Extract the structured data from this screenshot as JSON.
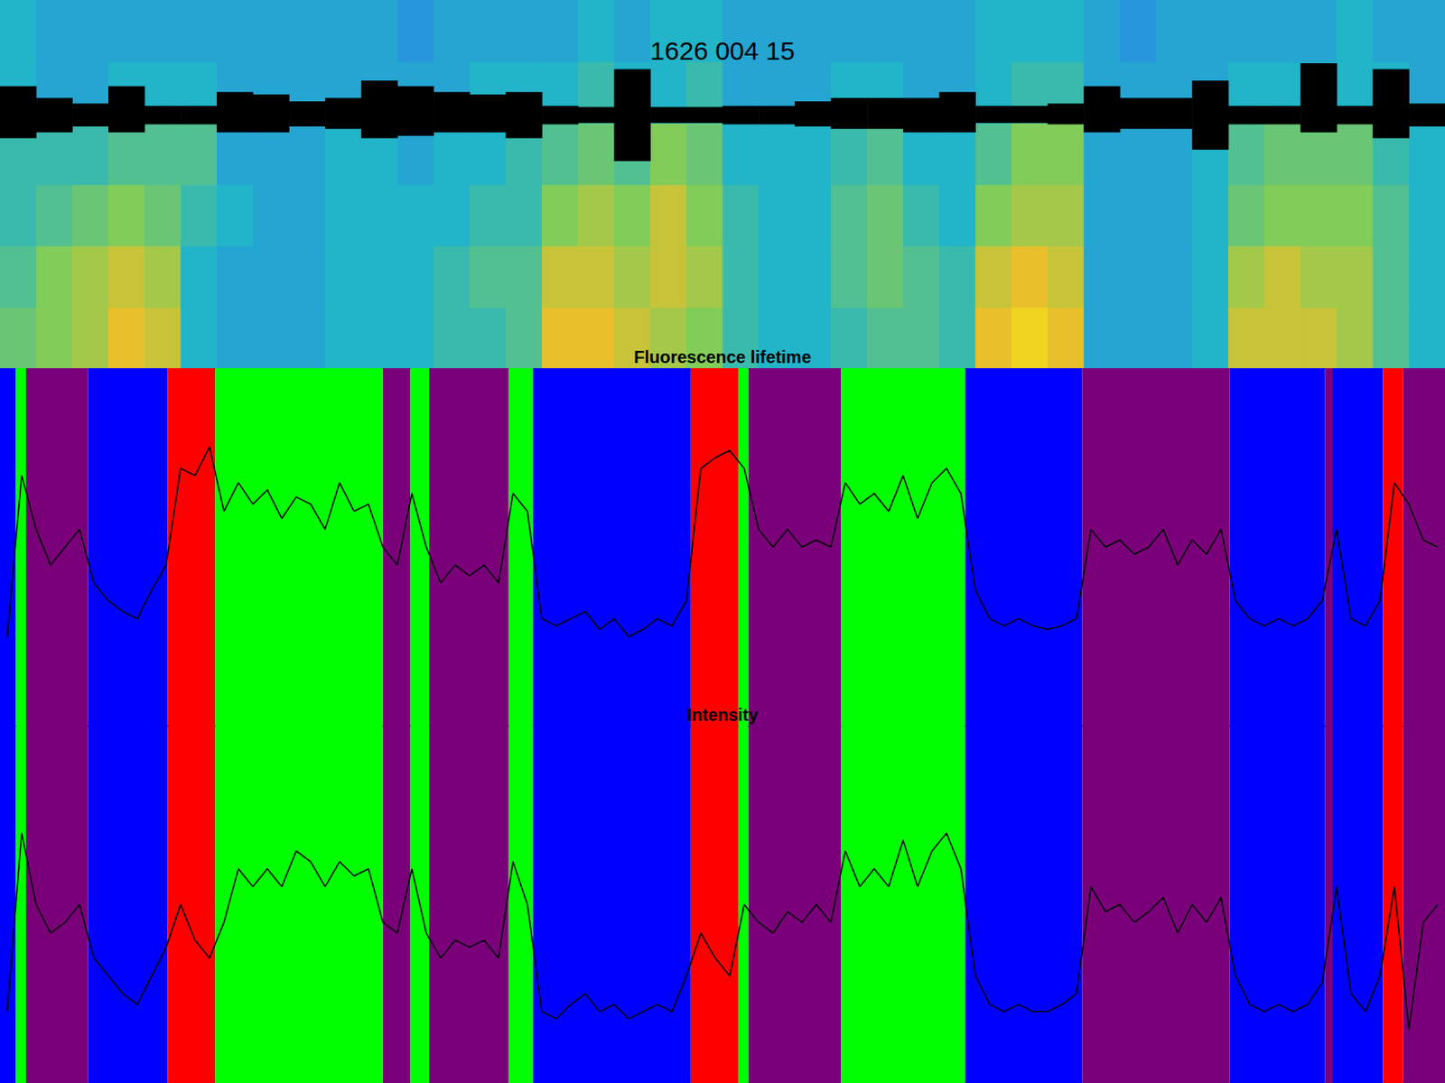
{
  "chart_data": [
    {
      "type": "heatmap",
      "title": "1626 004 15",
      "tick_labels": false,
      "grid": false,
      "xlim": [
        0,
        1000
      ],
      "ylim": [
        0,
        6
      ],
      "color_range": [
        0,
        1
      ],
      "x": [
        12.5,
        37.5,
        62.5,
        87.5,
        112.5,
        137.5,
        162.5,
        187.5,
        212.5,
        237.5,
        262.5,
        287.5,
        312.5,
        337.5,
        362.5,
        387.5,
        412.5,
        437.5,
        462.5,
        487.5,
        512.5,
        537.5,
        562.5,
        587.5,
        612.5,
        637.5,
        662.5,
        687.5,
        712.5,
        737.5,
        762.5,
        787.5,
        812.5,
        837.5,
        862.5,
        887.5,
        912.5,
        937.5,
        962.5,
        987.5
      ],
      "cells": [
        [
          0.65,
          0.7,
          0.75,
          0.85,
          0.8,
          0.5,
          0.45,
          0.45,
          0.45,
          0.5,
          0.5,
          0.5,
          0.55,
          0.55,
          0.6,
          0.85,
          0.85,
          0.8,
          0.75,
          0.7,
          0.55,
          0.5,
          0.5,
          0.55,
          0.6,
          0.6,
          0.55,
          0.85,
          0.9,
          0.85,
          0.45,
          0.45,
          0.45,
          0.5,
          0.8,
          0.8,
          0.8,
          0.75,
          0.6,
          0.5
        ],
        [
          0.6,
          0.7,
          0.75,
          0.8,
          0.75,
          0.5,
          0.45,
          0.45,
          0.45,
          0.5,
          0.5,
          0.5,
          0.55,
          0.6,
          0.6,
          0.8,
          0.8,
          0.75,
          0.8,
          0.75,
          0.55,
          0.5,
          0.5,
          0.6,
          0.65,
          0.6,
          0.55,
          0.8,
          0.85,
          0.8,
          0.45,
          0.45,
          0.45,
          0.5,
          0.75,
          0.8,
          0.75,
          0.75,
          0.6,
          0.5
        ],
        [
          0.55,
          0.6,
          0.65,
          0.7,
          0.65,
          0.55,
          0.5,
          0.45,
          0.45,
          0.5,
          0.5,
          0.5,
          0.5,
          0.55,
          0.55,
          0.7,
          0.75,
          0.7,
          0.8,
          0.7,
          0.55,
          0.5,
          0.5,
          0.6,
          0.65,
          0.55,
          0.5,
          0.7,
          0.75,
          0.75,
          0.45,
          0.45,
          0.45,
          0.5,
          0.65,
          0.7,
          0.7,
          0.7,
          0.6,
          0.5
        ],
        [
          0.55,
          0.55,
          0.55,
          0.6,
          0.6,
          0.6,
          0.45,
          0.45,
          0.45,
          0.5,
          0.5,
          0.45,
          0.5,
          0.5,
          0.55,
          0.6,
          0.65,
          0.6,
          0.7,
          0.65,
          0.5,
          0.5,
          0.5,
          0.55,
          0.6,
          0.5,
          0.5,
          0.6,
          0.7,
          0.7,
          0.45,
          0.45,
          0.45,
          0.5,
          0.6,
          0.65,
          0.65,
          0.65,
          0.55,
          0.5
        ],
        [
          0.5,
          0.45,
          0.45,
          0.5,
          0.5,
          0.5,
          0.45,
          0.45,
          0.45,
          0.45,
          0.45,
          0.45,
          0.45,
          0.5,
          0.5,
          0.5,
          0.55,
          0.5,
          0.5,
          0.55,
          0.45,
          0.45,
          0.45,
          0.5,
          0.5,
          0.45,
          0.45,
          0.5,
          0.55,
          0.55,
          0.45,
          0.45,
          0.45,
          0.45,
          0.5,
          0.5,
          0.5,
          0.5,
          0.5,
          0.45
        ],
        [
          0.5,
          0.45,
          0.45,
          0.45,
          0.45,
          0.45,
          0.45,
          0.45,
          0.45,
          0.45,
          0.45,
          0.4,
          0.45,
          0.45,
          0.45,
          0.45,
          0.5,
          0.45,
          0.5,
          0.5,
          0.45,
          0.45,
          0.45,
          0.45,
          0.45,
          0.45,
          0.45,
          0.5,
          0.5,
          0.5,
          0.45,
          0.4,
          0.45,
          0.45,
          0.45,
          0.45,
          0.45,
          0.5,
          0.45,
          0.45
        ]
      ],
      "trace": {
        "ylim": [
          -2.2,
          1
        ],
        "color": "#000000",
        "upper": [
          0.25,
          0.15,
          0.1,
          0.25,
          0.08,
          0.08,
          0.2,
          0.18,
          0.12,
          0.15,
          0.3,
          0.25,
          0.2,
          0.18,
          0.2,
          0.08,
          0.07,
          0.4,
          0.07,
          0.07,
          0.08,
          0.08,
          0.12,
          0.15,
          0.15,
          0.15,
          0.2,
          0.08,
          0.08,
          0.1,
          0.25,
          0.15,
          0.15,
          0.3,
          0.08,
          0.08,
          0.45,
          0.08,
          0.4,
          0.1
        ],
        "lower": [
          -0.2,
          -0.15,
          -0.1,
          -0.15,
          -0.08,
          -0.08,
          -0.15,
          -0.15,
          -0.1,
          -0.12,
          -0.2,
          -0.18,
          -0.15,
          -0.15,
          -0.2,
          -0.08,
          -0.07,
          -0.4,
          -0.07,
          -0.07,
          -0.08,
          -0.08,
          -0.1,
          -0.12,
          -0.12,
          -0.15,
          -0.15,
          -0.07,
          -0.07,
          -0.08,
          -0.15,
          -0.12,
          -0.12,
          -0.3,
          -0.08,
          -0.08,
          -0.15,
          -0.08,
          -0.2,
          -0.1
        ]
      }
    },
    {
      "type": "line",
      "title": "Fluorescence lifetime",
      "tick_labels": false,
      "grid": false,
      "color": "#000000",
      "xlim": [
        0,
        1000
      ],
      "ylim": [
        0,
        1
      ],
      "states": [
        {
          "start": 0,
          "end": 11,
          "color": "#0000ff"
        },
        {
          "start": 11,
          "end": 18,
          "color": "#00ff00"
        },
        {
          "start": 18,
          "end": 61,
          "color": "#7a007a"
        },
        {
          "start": 61,
          "end": 116,
          "color": "#0000ff"
        },
        {
          "start": 116,
          "end": 149,
          "color": "#ff0000"
        },
        {
          "start": 149,
          "end": 265,
          "color": "#00ff00"
        },
        {
          "start": 265,
          "end": 284,
          "color": "#7a007a"
        },
        {
          "start": 284,
          "end": 297,
          "color": "#00ff00"
        },
        {
          "start": 297,
          "end": 352,
          "color": "#7a007a"
        },
        {
          "start": 352,
          "end": 369,
          "color": "#00ff00"
        },
        {
          "start": 369,
          "end": 478,
          "color": "#0000ff"
        },
        {
          "start": 478,
          "end": 511,
          "color": "#ff0000"
        },
        {
          "start": 511,
          "end": 518,
          "color": "#00ff00"
        },
        {
          "start": 518,
          "end": 582,
          "color": "#7a007a"
        },
        {
          "start": 582,
          "end": 668,
          "color": "#00ff00"
        },
        {
          "start": 668,
          "end": 749,
          "color": "#0000ff"
        },
        {
          "start": 749,
          "end": 851,
          "color": "#7a007a"
        },
        {
          "start": 851,
          "end": 917,
          "color": "#0000ff"
        },
        {
          "start": 917,
          "end": 922,
          "color": "#7a007a"
        },
        {
          "start": 922,
          "end": 957,
          "color": "#0000ff"
        },
        {
          "start": 957,
          "end": 971,
          "color": "#ff0000"
        },
        {
          "start": 971,
          "end": 1000,
          "color": "#7a007a"
        }
      ],
      "x": [
        5,
        15,
        25,
        35,
        45,
        55,
        65,
        75,
        85,
        95,
        105,
        115,
        125,
        135,
        145,
        155,
        165,
        175,
        185,
        195,
        205,
        215,
        225,
        235,
        245,
        255,
        265,
        275,
        285,
        295,
        305,
        315,
        325,
        335,
        345,
        355,
        365,
        375,
        385,
        395,
        405,
        415,
        425,
        435,
        445,
        455,
        465,
        475,
        485,
        495,
        505,
        515,
        525,
        535,
        545,
        555,
        565,
        575,
        585,
        595,
        605,
        615,
        625,
        635,
        645,
        655,
        665,
        675,
        685,
        695,
        705,
        715,
        725,
        735,
        745,
        755,
        765,
        775,
        785,
        795,
        805,
        815,
        825,
        835,
        845,
        855,
        865,
        875,
        885,
        895,
        905,
        915,
        925,
        935,
        945,
        955,
        965,
        975,
        985,
        995
      ],
      "values": [
        0.25,
        0.7,
        0.55,
        0.45,
        0.5,
        0.55,
        0.4,
        0.35,
        0.32,
        0.3,
        0.38,
        0.45,
        0.72,
        0.7,
        0.78,
        0.6,
        0.68,
        0.62,
        0.66,
        0.58,
        0.64,
        0.62,
        0.55,
        0.68,
        0.6,
        0.62,
        0.5,
        0.45,
        0.65,
        0.5,
        0.4,
        0.45,
        0.42,
        0.45,
        0.4,
        0.65,
        0.6,
        0.3,
        0.28,
        0.3,
        0.32,
        0.27,
        0.3,
        0.25,
        0.27,
        0.3,
        0.28,
        0.35,
        0.72,
        0.75,
        0.77,
        0.72,
        0.55,
        0.5,
        0.55,
        0.5,
        0.52,
        0.5,
        0.68,
        0.62,
        0.65,
        0.6,
        0.7,
        0.58,
        0.68,
        0.72,
        0.65,
        0.38,
        0.3,
        0.28,
        0.3,
        0.28,
        0.27,
        0.28,
        0.3,
        0.55,
        0.5,
        0.52,
        0.48,
        0.5,
        0.55,
        0.45,
        0.52,
        0.48,
        0.55,
        0.35,
        0.3,
        0.28,
        0.3,
        0.28,
        0.3,
        0.35,
        0.55,
        0.3,
        0.28,
        0.35,
        0.68,
        0.62,
        0.52,
        0.5
      ]
    },
    {
      "type": "line",
      "title": "Intensity",
      "tick_labels": false,
      "grid": false,
      "color": "#000000",
      "xlim": [
        0,
        1000
      ],
      "ylim": [
        0,
        1
      ],
      "states": [
        {
          "start": 0,
          "end": 11,
          "color": "#0000ff"
        },
        {
          "start": 11,
          "end": 18,
          "color": "#00ff00"
        },
        {
          "start": 18,
          "end": 61,
          "color": "#7a007a"
        },
        {
          "start": 61,
          "end": 116,
          "color": "#0000ff"
        },
        {
          "start": 116,
          "end": 149,
          "color": "#ff0000"
        },
        {
          "start": 149,
          "end": 265,
          "color": "#00ff00"
        },
        {
          "start": 265,
          "end": 284,
          "color": "#7a007a"
        },
        {
          "start": 284,
          "end": 297,
          "color": "#00ff00"
        },
        {
          "start": 297,
          "end": 352,
          "color": "#7a007a"
        },
        {
          "start": 352,
          "end": 369,
          "color": "#00ff00"
        },
        {
          "start": 369,
          "end": 478,
          "color": "#0000ff"
        },
        {
          "start": 478,
          "end": 511,
          "color": "#ff0000"
        },
        {
          "start": 511,
          "end": 518,
          "color": "#00ff00"
        },
        {
          "start": 518,
          "end": 582,
          "color": "#7a007a"
        },
        {
          "start": 582,
          "end": 668,
          "color": "#00ff00"
        },
        {
          "start": 668,
          "end": 749,
          "color": "#0000ff"
        },
        {
          "start": 749,
          "end": 851,
          "color": "#7a007a"
        },
        {
          "start": 851,
          "end": 917,
          "color": "#0000ff"
        },
        {
          "start": 917,
          "end": 922,
          "color": "#7a007a"
        },
        {
          "start": 922,
          "end": 957,
          "color": "#0000ff"
        },
        {
          "start": 957,
          "end": 971,
          "color": "#ff0000"
        },
        {
          "start": 971,
          "end": 1000,
          "color": "#7a007a"
        }
      ],
      "x": [
        5,
        15,
        25,
        35,
        45,
        55,
        65,
        75,
        85,
        95,
        105,
        115,
        125,
        135,
        145,
        155,
        165,
        175,
        185,
        195,
        205,
        215,
        225,
        235,
        245,
        255,
        265,
        275,
        285,
        295,
        305,
        315,
        325,
        335,
        345,
        355,
        365,
        375,
        385,
        395,
        405,
        415,
        425,
        435,
        445,
        455,
        465,
        475,
        485,
        495,
        505,
        515,
        525,
        535,
        545,
        555,
        565,
        575,
        585,
        595,
        605,
        615,
        625,
        635,
        645,
        655,
        665,
        675,
        685,
        695,
        705,
        715,
        725,
        735,
        745,
        755,
        765,
        775,
        785,
        795,
        805,
        815,
        825,
        835,
        845,
        855,
        865,
        875,
        885,
        895,
        905,
        915,
        925,
        935,
        945,
        955,
        965,
        975,
        985,
        995
      ],
      "values": [
        0.2,
        0.7,
        0.5,
        0.42,
        0.45,
        0.5,
        0.35,
        0.3,
        0.25,
        0.22,
        0.3,
        0.38,
        0.5,
        0.4,
        0.35,
        0.45,
        0.6,
        0.55,
        0.6,
        0.55,
        0.65,
        0.62,
        0.55,
        0.62,
        0.58,
        0.6,
        0.45,
        0.42,
        0.6,
        0.42,
        0.35,
        0.4,
        0.38,
        0.4,
        0.35,
        0.62,
        0.5,
        0.2,
        0.18,
        0.22,
        0.25,
        0.2,
        0.22,
        0.18,
        0.2,
        0.22,
        0.2,
        0.3,
        0.42,
        0.35,
        0.3,
        0.5,
        0.45,
        0.42,
        0.48,
        0.45,
        0.5,
        0.45,
        0.65,
        0.55,
        0.6,
        0.55,
        0.68,
        0.55,
        0.65,
        0.7,
        0.6,
        0.3,
        0.22,
        0.2,
        0.22,
        0.2,
        0.2,
        0.22,
        0.25,
        0.55,
        0.48,
        0.5,
        0.45,
        0.48,
        0.52,
        0.42,
        0.5,
        0.45,
        0.52,
        0.3,
        0.22,
        0.2,
        0.22,
        0.2,
        0.22,
        0.28,
        0.55,
        0.25,
        0.2,
        0.3,
        0.55,
        0.15,
        0.45,
        0.5
      ]
    }
  ]
}
